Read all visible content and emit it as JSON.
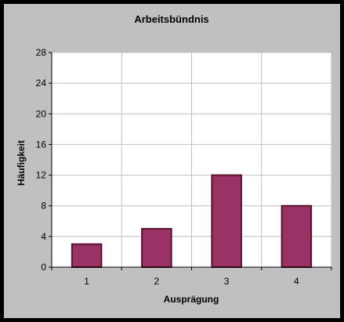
{
  "chart_data": {
    "type": "bar",
    "title": "Arbeitsbündnis",
    "xlabel": "Ausprägung",
    "ylabel": "Häufigkeit",
    "categories": [
      "1",
      "2",
      "3",
      "4"
    ],
    "values": [
      3,
      5,
      12,
      8
    ],
    "ylim": [
      0,
      28
    ],
    "yticks": [
      "0",
      "4",
      "8",
      "12",
      "16",
      "20",
      "24",
      "28"
    ],
    "grid": true,
    "legend": "none",
    "colors": {
      "background": "#c0c0c0",
      "plot_area": "#ffffff",
      "bar_fill": "#993366",
      "bar_stroke": "#5a0f2e",
      "grid": "#c0c0c0",
      "frame": "#000000"
    }
  }
}
